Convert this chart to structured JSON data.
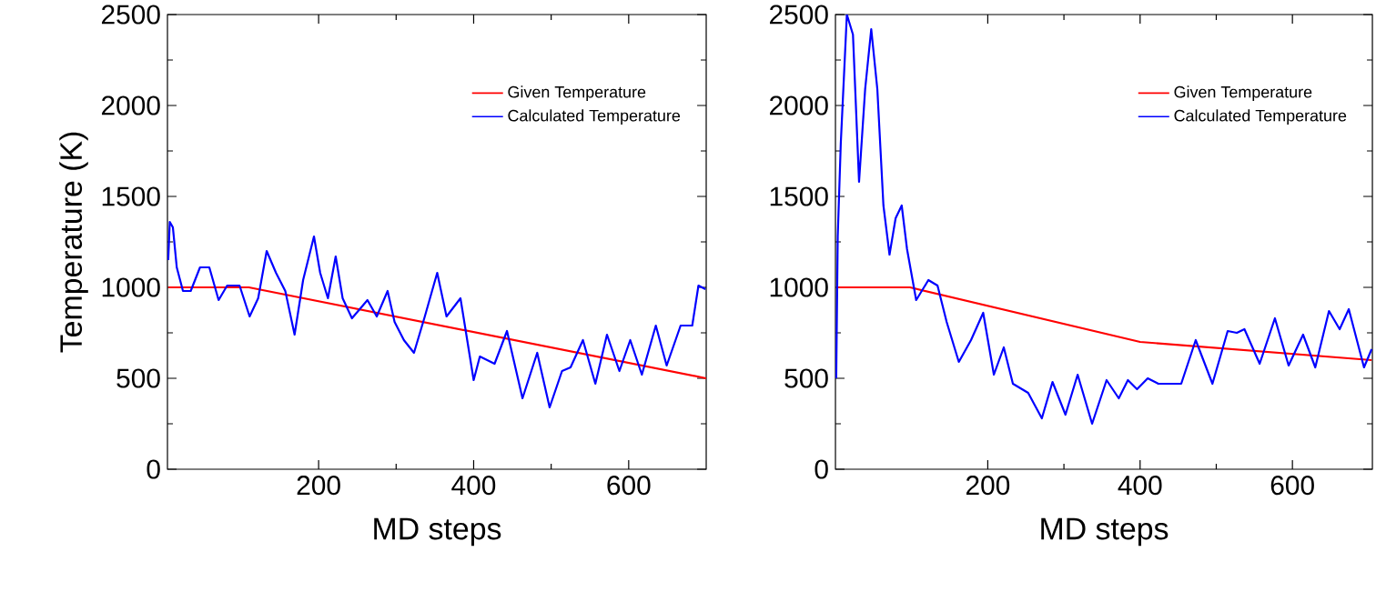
{
  "chart_data": [
    {
      "type": "line",
      "xlabel": "MD steps",
      "ylabel": "Temperature (K)",
      "xlim": [
        5,
        700
      ],
      "ylim": [
        0,
        2500
      ],
      "xticks": [
        200,
        400,
        600
      ],
      "yticks": [
        0,
        500,
        1000,
        1500,
        2000,
        2500
      ],
      "grid": false,
      "legend": "top right",
      "series": [
        {
          "name": "Given Temperature",
          "color": "#ff0000",
          "x": [
            6,
            110,
            700
          ],
          "values": [
            1000,
            1000,
            500
          ]
        },
        {
          "name": "Calculated Temperature",
          "color": "#0000ff",
          "x": [
            6,
            8,
            12,
            17,
            25,
            35,
            47,
            59,
            71,
            82,
            98,
            111,
            122,
            133,
            145,
            157,
            169,
            180,
            194,
            202,
            212,
            222,
            231,
            243,
            263,
            275,
            289,
            298,
            310,
            323,
            337,
            353,
            365,
            383,
            400,
            408,
            427,
            443,
            463,
            482,
            498,
            514,
            525,
            541,
            557,
            572,
            588,
            602,
            617,
            635,
            649,
            667,
            682,
            690,
            699
          ],
          "values": [
            1150,
            1360,
            1330,
            1110,
            980,
            980,
            1110,
            1110,
            930,
            1010,
            1010,
            840,
            940,
            1200,
            1080,
            980,
            740,
            1040,
            1280,
            1080,
            940,
            1170,
            940,
            830,
            930,
            840,
            980,
            810,
            710,
            640,
            840,
            1080,
            840,
            940,
            490,
            620,
            580,
            760,
            390,
            640,
            340,
            540,
            560,
            710,
            470,
            740,
            540,
            710,
            520,
            790,
            570,
            790,
            790,
            1010,
            990
          ]
        }
      ]
    },
    {
      "type": "line",
      "xlabel": "MD steps",
      "xlim": [
        0,
        705
      ],
      "ylim": [
        0,
        2500
      ],
      "xticks": [
        200,
        400,
        600
      ],
      "yticks": [
        0,
        500,
        1000,
        1500,
        2000,
        2500
      ],
      "grid": false,
      "legend": "top right",
      "series": [
        {
          "name": "Given Temperature",
          "color": "#ff0000",
          "x": [
            1,
            98,
            400,
            704
          ],
          "values": [
            1000,
            1000,
            700,
            600
          ]
        },
        {
          "name": "Calculated Temperature",
          "color": "#0000ff",
          "x": [
            1,
            3,
            7,
            15,
            23,
            31,
            39,
            47,
            55,
            63,
            71,
            79,
            87,
            94,
            106,
            122,
            134,
            146,
            162,
            178,
            194,
            208,
            221,
            233,
            253,
            271,
            285,
            302,
            318,
            337,
            356,
            372,
            384,
            396,
            410,
            424,
            454,
            473,
            495,
            515,
            527,
            537,
            557,
            577,
            595,
            614,
            630,
            648,
            662,
            674,
            694,
            704
          ],
          "values": [
            500,
            1280,
            1790,
            2500,
            2390,
            1580,
            2090,
            2420,
            2090,
            1450,
            1180,
            1380,
            1450,
            1210,
            930,
            1040,
            1010,
            810,
            590,
            710,
            860,
            520,
            670,
            470,
            420,
            280,
            480,
            300,
            520,
            250,
            490,
            390,
            490,
            440,
            500,
            470,
            470,
            710,
            470,
            760,
            750,
            770,
            580,
            830,
            570,
            740,
            560,
            870,
            770,
            880,
            560,
            660
          ]
        }
      ]
    }
  ]
}
